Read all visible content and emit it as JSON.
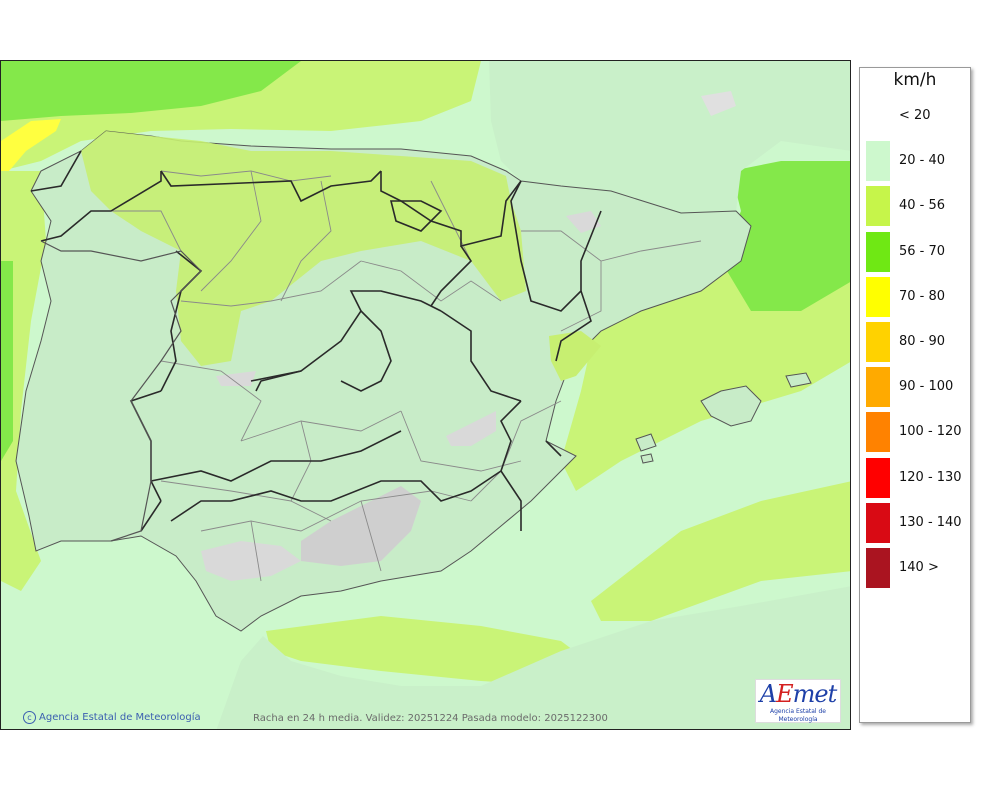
{
  "map": {
    "credit": "Agencia Estatal de Meteorología",
    "caption": "Racha en 24 h media. Validez: 20251224 Pasada modelo: 2025122300",
    "logo": {
      "text_a": "A",
      "text_e": "E",
      "text_rest": "met",
      "subtitle": "Agencia Estatal de Meteorología"
    },
    "colors": {
      "sea_20_40": "#cdf8cd",
      "band_40_56": "#c6f56f",
      "band_56_70": "#7de838",
      "band_70_80": "#ffff00",
      "snow": "#d8d8d8",
      "land_tint": "#c8ecc8"
    }
  },
  "legend": {
    "unit": "km/h",
    "items": [
      {
        "label": "< 20",
        "color": "#ffffff"
      },
      {
        "label": "20 - 40",
        "color": "#cdf8cd"
      },
      {
        "label": "40 - 56",
        "color": "#c6f54a"
      },
      {
        "label": "56 - 70",
        "color": "#6fe814"
      },
      {
        "label": "70 - 80",
        "color": "#ffff00"
      },
      {
        "label": "80 - 90",
        "color": "#ffd200"
      },
      {
        "label": "90 - 100",
        "color": "#ffaa00"
      },
      {
        "label": "100 - 120",
        "color": "#ff8200"
      },
      {
        "label": "120 - 130",
        "color": "#ff0000"
      },
      {
        "label": "130 - 140",
        "color": "#d90a14"
      },
      {
        "label": "140 >",
        "color": "#aa1420"
      }
    ]
  }
}
